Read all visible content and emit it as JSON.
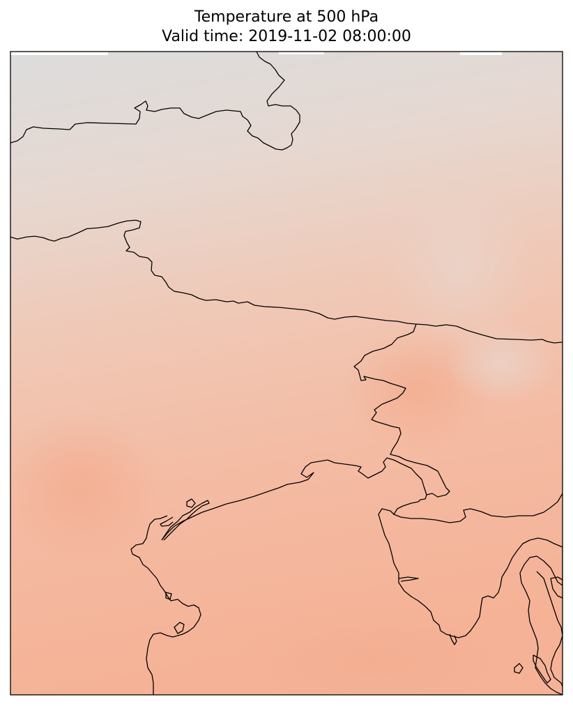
{
  "figure": {
    "title": "Temperature at 500 hPa",
    "subtitle": "Valid time: 2019-11-02 08:00:00"
  },
  "colors": {
    "cold": "#dcdcdc",
    "warm": "#f5b296",
    "coastline": "#000000",
    "frame": "#000000"
  }
}
